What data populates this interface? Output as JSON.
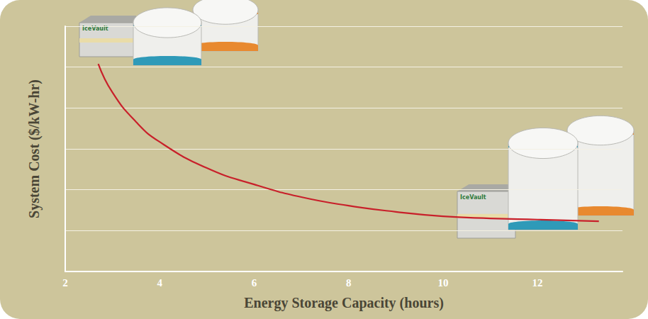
{
  "chart_data": {
    "type": "line",
    "x_label": "Energy Storage Capacity (hours)",
    "y_label": "System Cost ($/kW-hr)",
    "x": [
      2.7,
      3,
      3.5,
      4,
      5,
      6,
      7,
      8,
      9,
      10,
      11,
      12,
      13.3
    ],
    "values": [
      5.08,
      4.38,
      3.66,
      3.17,
      2.53,
      2.13,
      1.82,
      1.61,
      1.46,
      1.35,
      1.3,
      1.27,
      1.23
    ],
    "color": "#c8202a",
    "xlim": [
      2,
      13.8
    ],
    "xticks": [
      2,
      4,
      6,
      8,
      10,
      12
    ],
    "ylim": [
      0,
      6
    ],
    "yticks": [
      0,
      1,
      2,
      3,
      4,
      5,
      6
    ],
    "grid": true,
    "tick_labels": "x",
    "marker": "none",
    "line_style": "solid",
    "annotations": [
      "IceVault",
      "IceVault"
    ]
  }
}
